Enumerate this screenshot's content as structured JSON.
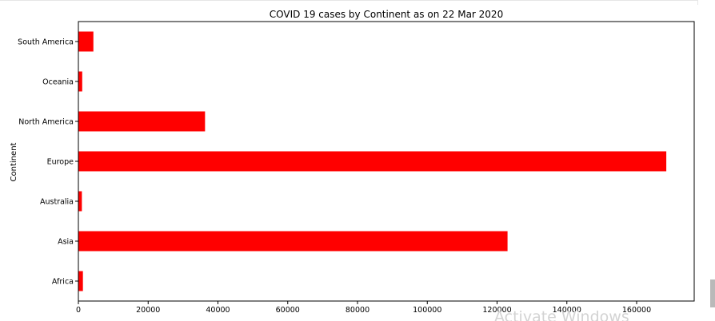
{
  "watermark": "Activate Windows",
  "chart_data": {
    "type": "bar",
    "orientation": "horizontal",
    "title": "COVID 19 cases by Continent as on 22 Mar 2020",
    "xlabel": "",
    "ylabel": "Continent",
    "categories": [
      "Africa",
      "Asia",
      "Australia",
      "Europe",
      "North America",
      "Oceania",
      "South America"
    ],
    "values": [
      1300,
      123000,
      1000,
      168500,
      36300,
      1100,
      4300
    ],
    "xlim": [
      0,
      176500
    ],
    "xticks": [
      0,
      20000,
      40000,
      60000,
      80000,
      100000,
      120000,
      140000,
      160000
    ],
    "bar_color": "#ff0000",
    "grid": false,
    "legend": "none"
  }
}
